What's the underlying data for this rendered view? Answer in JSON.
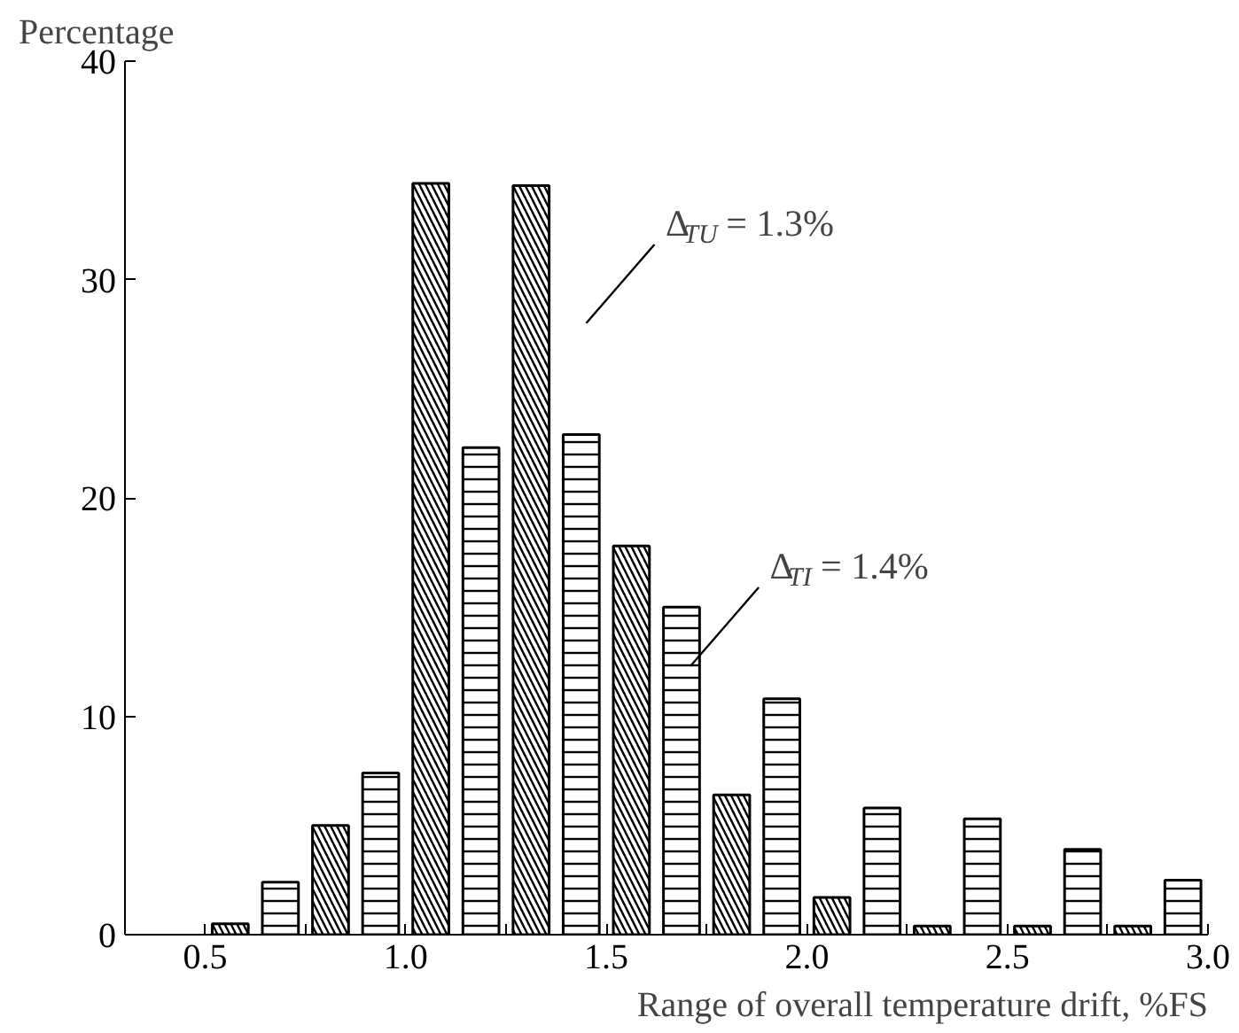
{
  "chart_data": {
    "type": "bar",
    "xlabel": "Range of overall temperature drift, %FS",
    "ylabel": "Percentage",
    "series": [
      {
        "color": "#000000",
        "x": [
          0.5625,
          0.8125,
          1.0625,
          1.3125,
          1.5625,
          1.8125,
          2.0625,
          2.3125,
          2.5625,
          2.8125
        ],
        "values": [
          0.5,
          5,
          34.4,
          34.3,
          17.8,
          6.4,
          1.7,
          0.4,
          0.4,
          0.4
        ]
      },
      {
        "color": "#000000",
        "x": [
          0.6875,
          0.9375,
          1.1875,
          1.4375,
          1.6875,
          1.9375,
          2.1875,
          2.4375,
          2.6875,
          2.9375
        ],
        "values": [
          2.4,
          7.4,
          22.3,
          22.9,
          15,
          10.8,
          5.8,
          5.3,
          3.9,
          2.5
        ]
      }
    ],
    "xlim": [
      0.3,
      3.0
    ],
    "ylim": [
      0,
      40
    ],
    "xticks": [
      0.5,
      {
        "value": 0.75,
        "label": null
      },
      "1.0",
      {
        "value": 1.25,
        "label": null
      },
      1.5,
      {
        "value": 1.75,
        "label": null
      },
      "2.0",
      {
        "value": 2.25,
        "label": null
      },
      2.5,
      {
        "value": 2.75,
        "label": null
      },
      "3.0"
    ],
    "yticks": [
      0,
      10,
      20,
      30,
      40
    ],
    "annotations": [
      "Δ$_{TU}$ = 1.3%",
      "Δ$_{TI}$ = 1.4%"
    ]
  }
}
